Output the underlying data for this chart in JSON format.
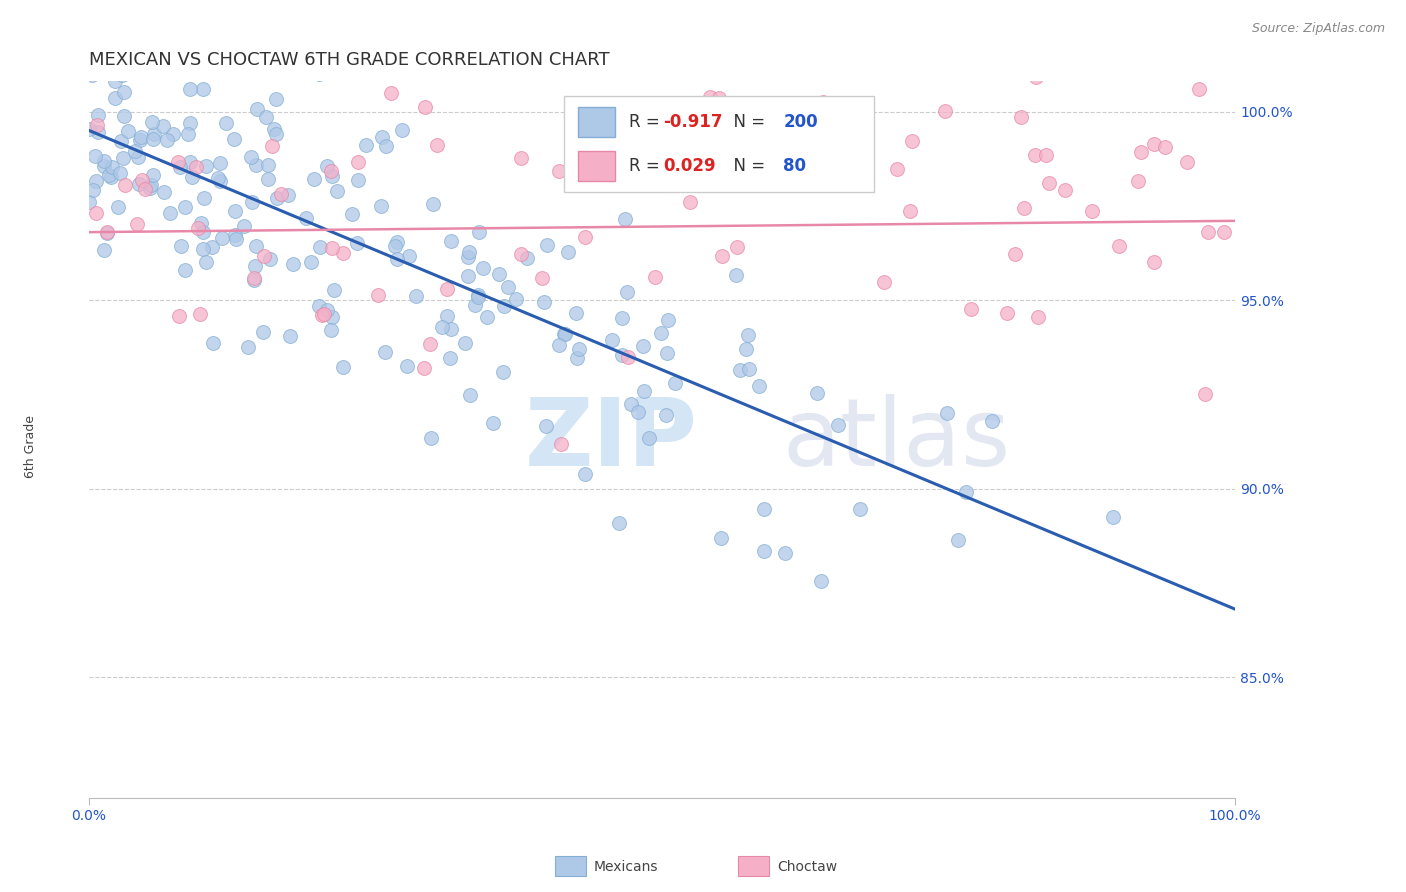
{
  "title": "MEXICAN VS CHOCTAW 6TH GRADE CORRELATION CHART",
  "source": "Source: ZipAtlas.com",
  "ylabel": "6th Grade",
  "xlim": [
    0.0,
    1.0
  ],
  "ylim": [
    0.818,
    1.008
  ],
  "yticks": [
    0.85,
    0.9,
    0.95,
    1.0
  ],
  "ytick_labels": [
    "85.0%",
    "90.0%",
    "95.0%",
    "100.0%"
  ],
  "xticks": [
    0.0,
    1.0
  ],
  "xtick_labels": [
    "0.0%",
    "100.0%"
  ],
  "blue_color": "#aec8e8",
  "blue_edge": "#85aed4",
  "blue_line_color": "#2a5db0",
  "pink_color": "#f5b0c8",
  "pink_edge": "#e888a8",
  "pink_line_color": "#e888a8",
  "R_blue": -0.917,
  "N_blue": 200,
  "R_pink": 0.029,
  "N_pink": 80,
  "legend_R_color": "#dd2222",
  "legend_N_color": "#2255cc",
  "watermark_zip_color": "#b8d4f0",
  "watermark_atlas_color": "#d0d8e8",
  "blue_seed": 12,
  "pink_seed": 99,
  "marker_size": 100,
  "blue_line_start_x": 0.0,
  "blue_line_start_y": 0.995,
  "blue_line_end_x": 1.0,
  "blue_line_end_y": 0.868,
  "pink_line_start_x": 0.0,
  "pink_line_start_y": 0.968,
  "pink_line_end_x": 1.0,
  "pink_line_end_y": 0.971,
  "grid_color": "#cccccc",
  "background_color": "#ffffff",
  "title_fontsize": 13,
  "ylabel_fontsize": 9,
  "tick_fontsize": 10,
  "source_fontsize": 9,
  "legend_fontsize": 12,
  "bottom_label_mexicans": "Mexicans",
  "bottom_label_choctaw": "Choctaw"
}
